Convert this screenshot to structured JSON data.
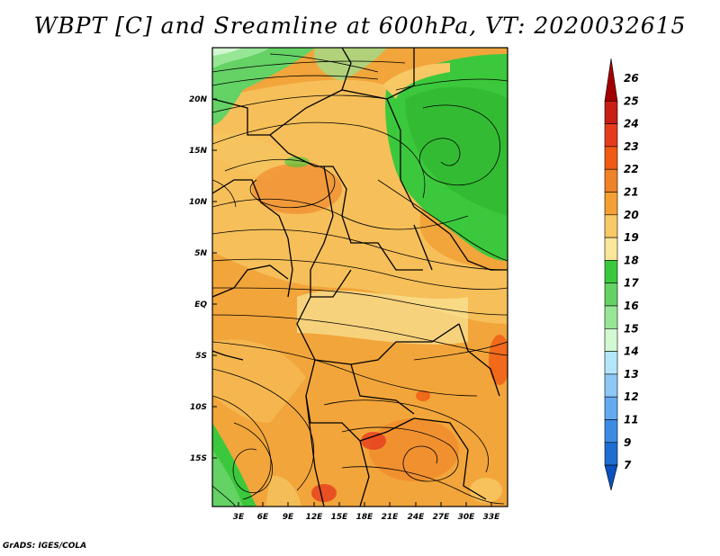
{
  "title": "WBPT [C] and Sreamline at 600hPa, VT: 2020032615",
  "footer": "GrADS: IGES/COLA",
  "map": {
    "lat_labels": [
      "20N",
      "15N",
      "10N",
      "5N",
      "EQ",
      "5S",
      "10S",
      "15S"
    ],
    "lon_labels": [
      "3E",
      "6E",
      "9E",
      "12E",
      "15E",
      "18E",
      "21E",
      "24E",
      "27E",
      "30E",
      "33E"
    ]
  },
  "colorbar": {
    "labels": [
      "26",
      "25",
      "24",
      "23",
      "22",
      "21",
      "20",
      "19",
      "18",
      "17",
      "16",
      "15",
      "14",
      "13",
      "12",
      "11",
      "9",
      "7"
    ],
    "colors": [
      "#a00000",
      "#c81e14",
      "#e63c1e",
      "#f05a14",
      "#f08228",
      "#f5a034",
      "#f7c864",
      "#fae699",
      "#3cc83c",
      "#64d264",
      "#96e696",
      "#d2f8d2",
      "#b4e6fa",
      "#8cc8f5",
      "#64aaf0",
      "#3c8ce6",
      "#1e6ed2",
      "#0a50be"
    ]
  }
}
